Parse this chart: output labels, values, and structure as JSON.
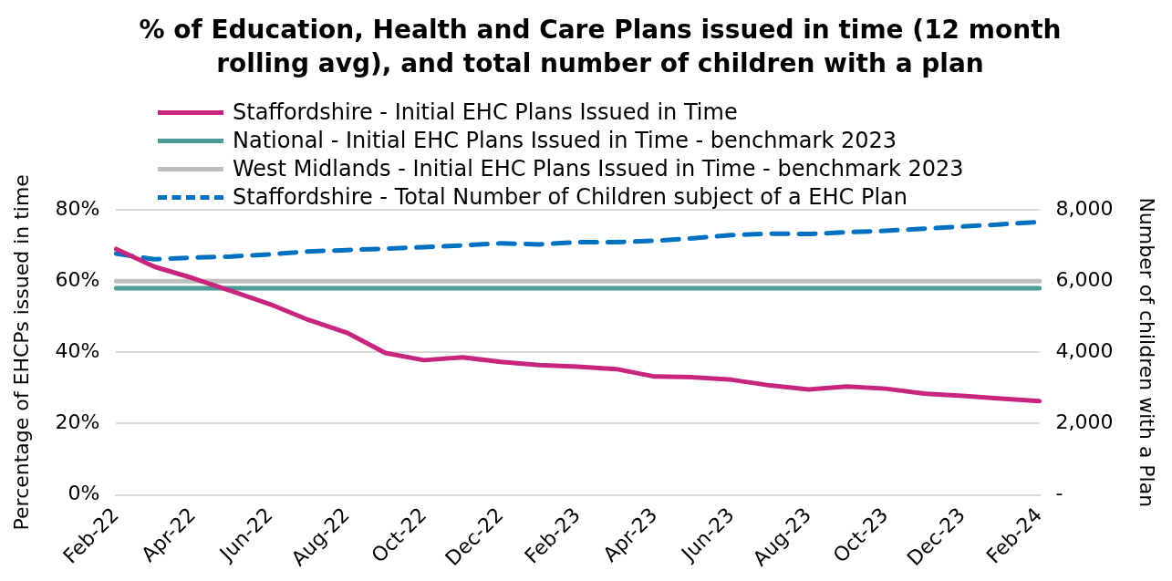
{
  "chart_data": {
    "type": "line",
    "title": "% of Education, Health and Care Plans issued in time (12 month rolling avg), and total number of children with a plan",
    "ylabel": "Percentage of EHCPs issued in time",
    "y2label": "Number of children with a Plan",
    "categories": [
      "Feb-22",
      null,
      "Apr-22",
      null,
      "Jun-22",
      null,
      "Aug-22",
      null,
      "Oct-22",
      null,
      "Dec-22",
      null,
      "Feb-23",
      null,
      "Apr-23",
      null,
      "Jun-23",
      null,
      "Aug-23",
      null,
      "Oct-23",
      null,
      "Dec-23",
      null,
      "Feb-24"
    ],
    "series": [
      {
        "name": "Staffordshire - Initial EHC Plans Issued in Time",
        "color": "#c8267e",
        "values": [
          69.0,
          64.0,
          60.8,
          57.2,
          53.5,
          49.1,
          45.5,
          39.8,
          37.8,
          38.6,
          37.3,
          36.4,
          36.0,
          35.3,
          33.2,
          33.0,
          32.3,
          30.7,
          29.6,
          30.4,
          29.8,
          28.4,
          27.8,
          27.0,
          26.3
        ]
      },
      {
        "name": "National - Initial EHC Plans Issued in Time - benchmark 2023",
        "color": "#4e9a94",
        "values": [
          58,
          58,
          58,
          58,
          58,
          58,
          58,
          58,
          58,
          58,
          58,
          58,
          58,
          58,
          58,
          58,
          58,
          58,
          58,
          58,
          58,
          58,
          58,
          58,
          58
        ]
      },
      {
        "name": "West Midlands - Initial EHC Plans Issued in Time - benchmark 2023",
        "color": "#bfbfbf",
        "values": [
          60,
          60,
          60,
          60,
          60,
          60,
          60,
          60,
          60,
          60,
          60,
          60,
          60,
          60,
          60,
          60,
          60,
          60,
          60,
          60,
          60,
          60,
          60,
          60,
          60
        ]
      },
      {
        "name": "Staffordshire - Total Number of Children subject of a EHC Plan",
        "color": "#0070c0",
        "axis": "y2",
        "line_style": "dashed",
        "values": [
          6770,
          6610,
          6660,
          6690,
          6750,
          6830,
          6870,
          6910,
          6950,
          7000,
          7060,
          7030,
          7090,
          7090,
          7130,
          7200,
          7290,
          7330,
          7320,
          7370,
          7410,
          7470,
          7530,
          7590,
          7660
        ]
      }
    ],
    "ylim": [
      0,
      80
    ],
    "yticks": [
      {
        "value": 0,
        "label": "0%"
      },
      {
        "value": 20,
        "label": "20%"
      },
      {
        "value": 40,
        "label": "40%"
      },
      {
        "value": 60,
        "label": "60%"
      },
      {
        "value": 80,
        "label": "80%"
      }
    ],
    "y2lim": [
      0,
      8000
    ],
    "y2ticks": [
      {
        "value": 0,
        "label": "-"
      },
      {
        "value": 2000,
        "label": "2,000"
      },
      {
        "value": 4000,
        "label": "4,000"
      },
      {
        "value": 6000,
        "label": "6,000"
      },
      {
        "value": 8000,
        "label": "8,000"
      }
    ],
    "grid": "y",
    "legend": "top left",
    "marker": "none",
    "line_style": "solid"
  }
}
